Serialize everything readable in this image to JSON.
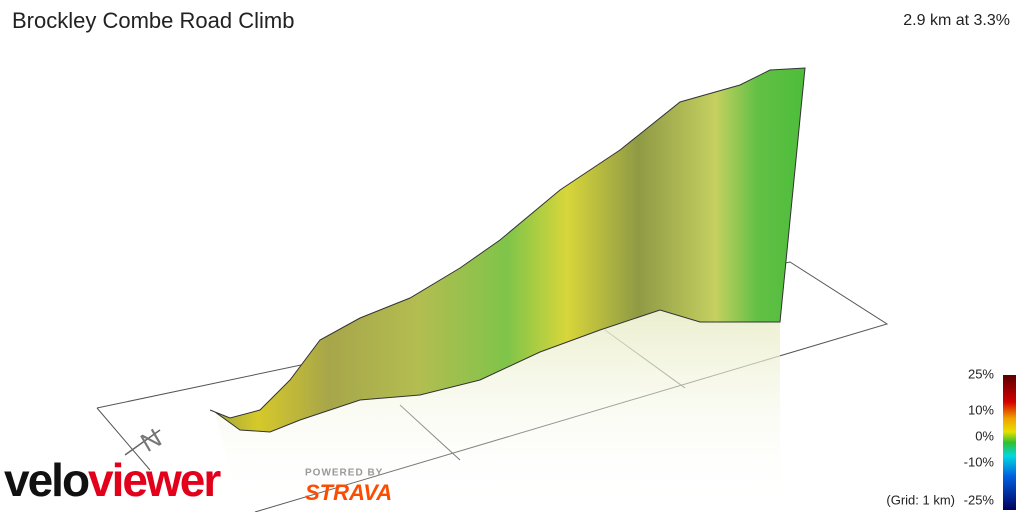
{
  "header": {
    "title": "Brockley Combe Road Climb",
    "summary": "2.9 km at 3.3%"
  },
  "compass": {
    "label": "N"
  },
  "scale": {
    "labels": [
      "25%",
      "10%",
      "0%",
      "-10%",
      "-25%"
    ],
    "grid_note": "(Grid: 1 km)"
  },
  "logo": {
    "velo": "velo",
    "viewer": "viewer",
    "powered_by": "POWERED BY",
    "strava": "STRAVA"
  }
}
